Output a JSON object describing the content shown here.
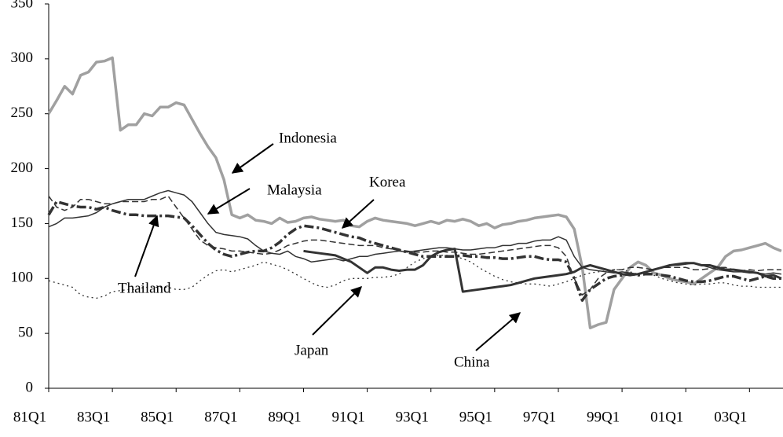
{
  "chart_data": {
    "type": "line",
    "categories": [
      "81Q1",
      null,
      null,
      null,
      null,
      null,
      null,
      null,
      "83Q1",
      null,
      null,
      null,
      null,
      null,
      null,
      null,
      "85Q1",
      null,
      null,
      null,
      null,
      null,
      null,
      null,
      "87Q1",
      null,
      null,
      null,
      null,
      null,
      null,
      null,
      "89Q1",
      null,
      null,
      null,
      null,
      null,
      null,
      null,
      "91Q1",
      null,
      null,
      null,
      null,
      null,
      null,
      null,
      "93Q1",
      null,
      null,
      null,
      null,
      null,
      null,
      null,
      "95Q1",
      null,
      null,
      null,
      null,
      null,
      null,
      null,
      "97Q1",
      null,
      null,
      null,
      null,
      null,
      null,
      null,
      "99Q1",
      null,
      null,
      null,
      null,
      null,
      null,
      null,
      "01Q1",
      null,
      null,
      null,
      null,
      null,
      null,
      null,
      "03Q1",
      null,
      null,
      null,
      null
    ],
    "ylim": [
      0,
      350
    ],
    "yticks": [
      0,
      50,
      100,
      150,
      200,
      250,
      300,
      350
    ],
    "series": [
      {
        "name": "Indonesia",
        "color": "#a0a0a0",
        "dash": "none",
        "values": [
          250,
          262,
          275,
          268,
          285,
          288,
          297,
          298,
          301,
          235,
          240,
          240,
          250,
          248,
          256,
          256,
          260,
          258,
          245,
          232,
          220,
          210,
          190,
          158,
          155,
          158,
          153,
          152,
          150,
          155,
          151,
          152,
          155,
          156,
          154,
          153,
          152,
          153,
          148,
          147,
          152,
          155,
          153,
          152,
          151,
          150,
          148,
          150,
          152,
          150,
          153,
          152,
          154,
          152,
          148,
          150,
          146,
          149,
          150,
          152,
          153,
          155,
          156,
          157,
          158,
          156,
          145,
          110,
          55,
          58,
          60,
          90,
          100,
          110,
          115,
          112,
          105,
          103,
          100,
          98,
          97,
          95,
          100,
          105,
          110,
          120,
          125,
          126,
          128,
          130,
          132,
          128,
          125
        ]
      },
      {
        "name": "Malaysia",
        "color": "#333333",
        "dash": "none",
        "values": [
          147,
          150,
          155,
          155,
          156,
          157,
          160,
          165,
          168,
          170,
          172,
          172,
          172,
          175,
          178,
          180,
          178,
          176,
          170,
          160,
          150,
          142,
          140,
          139,
          138,
          136,
          130,
          125,
          123,
          122,
          125,
          120,
          118,
          115,
          116,
          117,
          118,
          116,
          118,
          120,
          120,
          122,
          123,
          124,
          125,
          124,
          125,
          126,
          127,
          128,
          128,
          127,
          126,
          126,
          127,
          128,
          128,
          130,
          130,
          132,
          132,
          134,
          135,
          135,
          138,
          135,
          120,
          110,
          108,
          107,
          106,
          105,
          106,
          105,
          104,
          106,
          108,
          110,
          112,
          112,
          113,
          114,
          112,
          110,
          108,
          107,
          106,
          106,
          105,
          105,
          104,
          105,
          104
        ]
      },
      {
        "name": "Korea",
        "color": "#333333",
        "dash": "8,4",
        "values": [
          175,
          165,
          162,
          165,
          172,
          172,
          170,
          168,
          168,
          170,
          170,
          170,
          170,
          172,
          172,
          175,
          165,
          155,
          145,
          135,
          130,
          128,
          127,
          125,
          125,
          124,
          123,
          122,
          123,
          126,
          130,
          132,
          134,
          135,
          135,
          134,
          133,
          132,
          131,
          130,
          130,
          130,
          128,
          127,
          126,
          125,
          124,
          124,
          125,
          125,
          124,
          124,
          123,
          122,
          122,
          123,
          124,
          125,
          126,
          127,
          128,
          129,
          130,
          130,
          128,
          120,
          100,
          85,
          90,
          100,
          105,
          108,
          108,
          110,
          110,
          109,
          108,
          110,
          110,
          110,
          110,
          108,
          108,
          109,
          110,
          110,
          108,
          107,
          108,
          107,
          108,
          108,
          108
        ]
      },
      {
        "name": "Thailand",
        "color": "#333333",
        "dash": "12,4,3,4",
        "values": [
          158,
          170,
          168,
          166,
          165,
          165,
          163,
          165,
          162,
          160,
          158,
          158,
          157,
          157,
          157,
          157,
          156,
          155,
          148,
          140,
          132,
          126,
          122,
          120,
          122,
          124,
          125,
          125,
          128,
          133,
          140,
          145,
          148,
          147,
          146,
          144,
          142,
          140,
          138,
          137,
          134,
          132,
          130,
          128,
          126,
          124,
          122,
          120,
          120,
          120,
          120,
          120,
          121,
          120,
          120,
          119,
          119,
          118,
          118,
          119,
          120,
          120,
          118,
          117,
          117,
          115,
          100,
          80,
          90,
          95,
          100,
          102,
          103,
          104,
          103,
          104,
          104,
          103,
          102,
          100,
          98,
          97,
          97,
          98,
          100,
          102,
          102,
          100,
          98,
          100,
          102,
          100,
          100
        ]
      },
      {
        "name": "Japan",
        "color": "#333333",
        "dash": "2,4",
        "values": [
          98,
          96,
          94,
          92,
          85,
          83,
          82,
          84,
          88,
          89,
          90,
          90,
          92,
          92,
          92,
          92,
          90,
          90,
          92,
          98,
          103,
          107,
          108,
          106,
          108,
          110,
          112,
          115,
          113,
          111,
          108,
          104,
          100,
          96,
          93,
          92,
          94,
          98,
          100,
          100,
          100,
          101,
          101,
          102,
          104,
          110,
          115,
          118,
          120,
          121,
          121,
          120,
          118,
          115,
          110,
          106,
          102,
          99,
          97,
          96,
          95,
          95,
          94,
          93,
          95,
          97,
          100,
          103,
          105,
          106,
          107,
          108,
          108,
          106,
          104,
          104,
          103,
          100,
          98,
          96,
          95,
          94,
          95,
          95,
          96,
          96,
          94,
          93,
          93,
          92,
          92,
          92,
          92
        ]
      },
      {
        "name": "China",
        "color": "#333333",
        "dash": "none",
        "values": [
          null,
          null,
          null,
          null,
          null,
          null,
          null,
          null,
          null,
          null,
          null,
          null,
          null,
          null,
          null,
          null,
          null,
          null,
          null,
          null,
          null,
          null,
          null,
          null,
          null,
          null,
          null,
          null,
          null,
          null,
          null,
          null,
          125,
          124,
          123,
          122,
          121,
          118,
          115,
          110,
          105,
          110,
          110,
          108,
          107,
          108,
          108,
          112,
          120,
          124,
          126,
          127,
          88,
          89,
          90,
          91,
          92,
          93,
          94,
          96,
          98,
          100,
          101,
          102,
          103,
          104,
          106,
          110,
          112,
          110,
          108,
          106,
          104,
          103,
          104,
          106,
          108,
          110,
          112,
          113,
          114,
          114,
          112,
          112,
          110,
          108,
          108,
          107,
          106,
          105,
          102,
          103,
          100
        ]
      }
    ]
  }
}
